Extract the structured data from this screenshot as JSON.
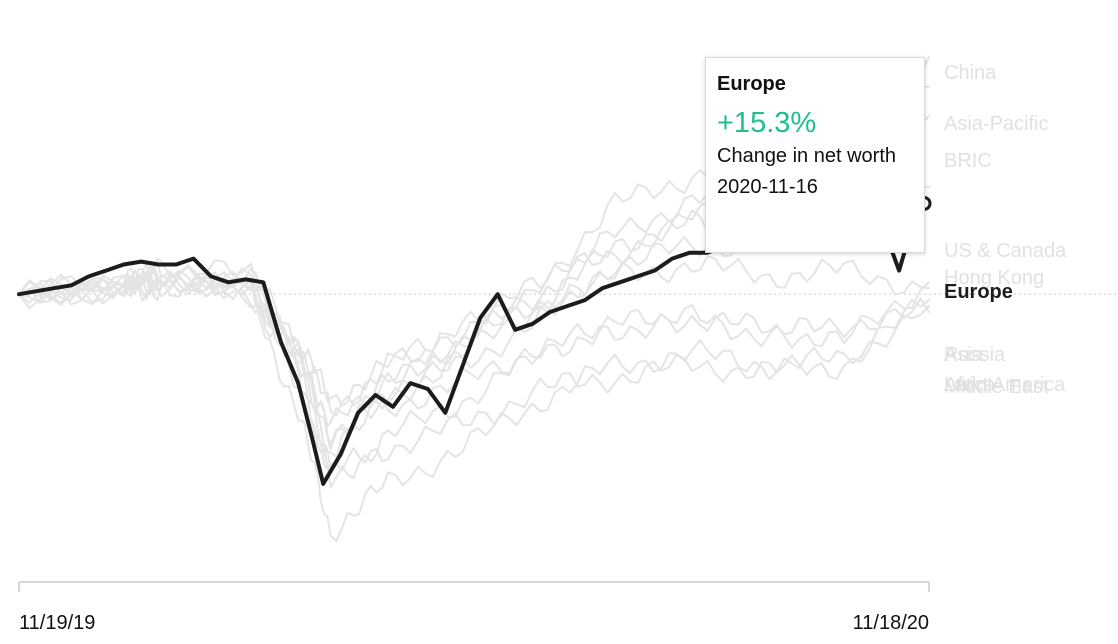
{
  "tooltip": {
    "series": "Europe",
    "value": "+15.3%",
    "metric_label": "Change in net worth",
    "date": "2020-11-16"
  },
  "colors": {
    "highlight": "#1c1c1c",
    "background_series": "#e4e4e4",
    "background_labels": "#e1e1e1",
    "positive_value": "#1fbf8f",
    "baseline": "#c8c8c8",
    "axis": "#d6d6d6"
  },
  "chart_data": {
    "type": "line",
    "x_range": [
      "2019-11-19",
      "2020-11-18"
    ],
    "ylim": [
      -45,
      40
    ],
    "baseline": 0,
    "x_tick_labels": [
      "11/19/19",
      "11/18/20"
    ],
    "highlighted_series": "Europe",
    "series": [
      {
        "name": "China",
        "dates": [
          "2019-11-19",
          "2019-12-31",
          "2020-01-15",
          "2020-02-20",
          "2020-03-10",
          "2020-03-23",
          "2020-04-15",
          "2020-05-15",
          "2020-06-15",
          "2020-07-15",
          "2020-08-15",
          "2020-09-15",
          "2020-10-15",
          "2020-11-18"
        ],
        "values": [
          0,
          2,
          4,
          3,
          -8,
          -20,
          -12,
          -6,
          2,
          15,
          20,
          23,
          28,
          40
        ]
      },
      {
        "name": "Asia-Pacific",
        "dates": [
          "2019-11-19",
          "2019-12-31",
          "2020-01-15",
          "2020-02-20",
          "2020-03-10",
          "2020-03-23",
          "2020-04-15",
          "2020-05-15",
          "2020-06-15",
          "2020-07-15",
          "2020-08-15",
          "2020-09-15",
          "2020-10-15",
          "2020-11-18"
        ],
        "values": [
          0,
          2,
          3,
          2,
          -10,
          -24,
          -15,
          -8,
          0,
          10,
          16,
          18,
          22,
          35
        ]
      },
      {
        "name": "BRIC",
        "dates": [
          "2019-11-19",
          "2019-12-31",
          "2020-01-15",
          "2020-02-20",
          "2020-03-10",
          "2020-03-23",
          "2020-04-15",
          "2020-05-15",
          "2020-06-15",
          "2020-07-15",
          "2020-08-15",
          "2020-09-15",
          "2020-10-15",
          "2020-11-18"
        ],
        "values": [
          0,
          1,
          3,
          1,
          -12,
          -27,
          -18,
          -10,
          -2,
          8,
          13,
          15,
          19,
          30
        ]
      },
      {
        "name": "US & Canada",
        "dates": [
          "2019-11-19",
          "2019-12-31",
          "2020-01-15",
          "2020-02-20",
          "2020-03-10",
          "2020-03-23",
          "2020-04-15",
          "2020-05-15",
          "2020-06-15",
          "2020-07-15",
          "2020-08-15",
          "2020-09-15",
          "2020-10-15",
          "2020-11-18"
        ],
        "values": [
          0,
          2,
          3,
          4,
          -12,
          -28,
          -14,
          -6,
          2,
          7,
          12,
          10,
          11,
          18
        ]
      },
      {
        "name": "Hong Kong",
        "dates": [
          "2019-11-19",
          "2019-12-31",
          "2020-01-15",
          "2020-02-20",
          "2020-03-10",
          "2020-03-23",
          "2020-04-15",
          "2020-05-15",
          "2020-06-15",
          "2020-07-15",
          "2020-08-15",
          "2020-09-15",
          "2020-10-15",
          "2020-11-18"
        ],
        "values": [
          0,
          1,
          2,
          0,
          -10,
          -22,
          -16,
          -12,
          -4,
          5,
          8,
          9,
          10,
          15
        ]
      },
      {
        "name": "Europe",
        "dates": [
          "2019-11-19",
          "2019-11-26",
          "2019-12-03",
          "2019-12-10",
          "2019-12-17",
          "2019-12-24",
          "2019-12-31",
          "2020-01-07",
          "2020-01-14",
          "2020-01-21",
          "2020-01-28",
          "2020-02-04",
          "2020-02-11",
          "2020-02-18",
          "2020-02-25",
          "2020-03-03",
          "2020-03-10",
          "2020-03-16",
          "2020-03-20",
          "2020-03-27",
          "2020-04-03",
          "2020-04-10",
          "2020-04-17",
          "2020-04-24",
          "2020-05-01",
          "2020-05-08",
          "2020-05-15",
          "2020-05-22",
          "2020-05-29",
          "2020-06-05",
          "2020-06-12",
          "2020-06-19",
          "2020-06-26",
          "2020-07-03",
          "2020-07-10",
          "2020-07-17",
          "2020-07-24",
          "2020-07-31",
          "2020-08-07",
          "2020-08-14",
          "2020-08-21",
          "2020-08-28",
          "2020-09-04",
          "2020-09-11",
          "2020-09-18",
          "2020-09-25",
          "2020-10-02",
          "2020-10-09",
          "2020-10-16",
          "2020-10-23",
          "2020-10-30",
          "2020-11-06",
          "2020-11-13",
          "2020-11-16"
        ],
        "values": [
          0,
          0.5,
          1,
          1.5,
          3,
          4,
          5,
          5.5,
          5,
          5,
          6,
          3,
          2,
          2.5,
          2,
          -8,
          -15,
          -25,
          -32,
          -27,
          -20,
          -17,
          -19,
          -15,
          -16,
          -20,
          -12,
          -4,
          0,
          -6,
          -5,
          -3,
          -2,
          -1,
          1,
          2,
          3,
          4,
          6,
          7,
          7,
          8,
          8,
          10,
          12,
          12,
          13,
          14,
          14,
          15,
          12,
          4,
          14,
          15.3
        ]
      },
      {
        "name": "Russia",
        "dates": [
          "2019-11-19",
          "2019-12-31",
          "2020-01-15",
          "2020-02-20",
          "2020-03-10",
          "2020-03-23",
          "2020-04-15",
          "2020-05-15",
          "2020-06-15",
          "2020-07-15",
          "2020-08-15",
          "2020-09-15",
          "2020-10-15",
          "2020-11-18"
        ],
        "values": [
          0,
          2,
          3,
          1,
          -15,
          -32,
          -24,
          -18,
          -10,
          -5,
          -4,
          -6,
          -8,
          2
        ]
      },
      {
        "name": "Asia",
        "dates": [
          "2019-11-19",
          "2019-12-31",
          "2020-01-15",
          "2020-02-20",
          "2020-03-10",
          "2020-03-23",
          "2020-04-15",
          "2020-05-15",
          "2020-06-15",
          "2020-07-15",
          "2020-08-15",
          "2020-09-15",
          "2020-10-15",
          "2020-11-18"
        ],
        "values": [
          0,
          1,
          3,
          1,
          -8,
          -18,
          -12,
          -8,
          -2,
          3,
          5,
          3,
          4,
          1
        ]
      },
      {
        "name": "Latin America",
        "dates": [
          "2019-11-19",
          "2019-12-31",
          "2020-01-15",
          "2020-02-20",
          "2020-03-10",
          "2020-03-23",
          "2020-04-15",
          "2020-05-15",
          "2020-06-15",
          "2020-07-15",
          "2020-08-15",
          "2020-09-15",
          "2020-10-15",
          "2020-11-18"
        ],
        "values": [
          0,
          1,
          2,
          0,
          -20,
          -40,
          -32,
          -26,
          -18,
          -12,
          -10,
          -12,
          -11,
          -2
        ]
      },
      {
        "name": "Middle East",
        "dates": [
          "2019-11-19",
          "2019-12-31",
          "2020-01-15",
          "2020-02-20",
          "2020-03-10",
          "2020-03-23",
          "2020-04-15",
          "2020-05-15",
          "2020-06-15",
          "2020-07-15",
          "2020-08-15",
          "2020-09-15",
          "2020-10-15",
          "2020-11-18"
        ],
        "values": [
          0,
          1,
          2,
          1,
          -10,
          -24,
          -19,
          -15,
          -9,
          -6,
          -4,
          -7,
          -5,
          -3
        ]
      },
      {
        "name": "Africa",
        "dates": [
          "2019-11-19",
          "2019-12-31",
          "2020-01-15",
          "2020-02-20",
          "2020-03-10",
          "2020-03-23",
          "2020-04-15",
          "2020-05-15",
          "2020-06-15",
          "2020-07-15",
          "2020-08-15",
          "2020-09-15",
          "2020-10-15",
          "2020-11-18"
        ],
        "values": [
          0,
          1,
          1,
          0,
          -14,
          -30,
          -26,
          -22,
          -16,
          -14,
          -12,
          -13,
          -12,
          -1
        ]
      }
    ]
  }
}
